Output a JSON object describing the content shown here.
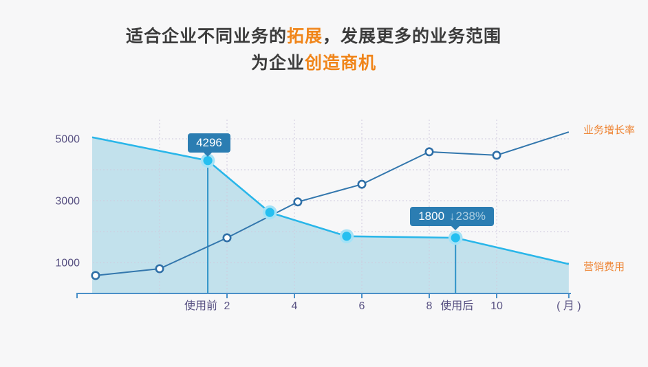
{
  "title": {
    "line1_part1": "适合企业不同业务的",
    "line1_accent": "拓展",
    "line1_part2": "，发展更多的业务范围",
    "line2_part1": "为企业",
    "line2_accent": "创造商机"
  },
  "chart_data": {
    "type": "area",
    "title": "",
    "xlabel": "( 月 )",
    "ylabel": "",
    "ylim": [
      0,
      5500
    ],
    "grid": "dashed",
    "x_axis": {
      "unit_label": "( 月 )",
      "tick_labels": [
        "2",
        "4",
        "6",
        "8",
        "10"
      ],
      "tick_months": [
        2,
        4,
        6,
        8,
        10
      ],
      "gridline_months": [
        0,
        2,
        4,
        6,
        8,
        10
      ],
      "annotations": [
        {
          "label": "使用前",
          "month": 1.43
        },
        {
          "label": "使用后",
          "month": 8.78
        }
      ]
    },
    "y_axis": {
      "tick_values": [
        1000,
        3000,
        5000
      ],
      "gridline_values": [
        1000,
        2000,
        3000,
        4000,
        5000
      ]
    },
    "series": [
      {
        "name": "营销费用",
        "role": "cost",
        "style": "area",
        "points": [
          {
            "m": -2.0,
            "v": 5050
          },
          {
            "m": 1.43,
            "v": 4296,
            "marker": true,
            "dropline": true
          },
          {
            "m": 3.27,
            "v": 2620,
            "marker": true
          },
          {
            "m": 5.55,
            "v": 1850,
            "marker": true
          },
          {
            "m": 8.78,
            "v": 1800,
            "marker": true,
            "dropline": true
          },
          {
            "m": 12.14,
            "v": 950
          }
        ]
      },
      {
        "name": "业务增长率",
        "role": "growth",
        "style": "line",
        "points": [
          {
            "m": -1.9,
            "v": 580,
            "marker": true
          },
          {
            "m": 0.0,
            "v": 800,
            "marker": true
          },
          {
            "m": 2.0,
            "v": 1800,
            "marker": true
          },
          {
            "m": 4.1,
            "v": 2960,
            "marker": true
          },
          {
            "m": 6.0,
            "v": 3530,
            "marker": true
          },
          {
            "m": 8.0,
            "v": 4580,
            "marker": true
          },
          {
            "m": 10.0,
            "v": 4470,
            "marker": true
          },
          {
            "m": 12.14,
            "v": 5220
          }
        ]
      }
    ],
    "tooltips": [
      {
        "value": "4296",
        "anchor_month": 1.43
      },
      {
        "value": "1800",
        "arrow": "↓",
        "change": "238%",
        "anchor_month": 8.78
      }
    ]
  },
  "colors": {
    "background": "#f7f7f8",
    "title_text": "#3b3b3b",
    "title_accent": "#f0851a",
    "legend_accent": "#ee8433",
    "axis_text": "#585182",
    "axis_line": "#4a90c8",
    "gridline": "#cfcade",
    "cost_line": "#29b6e9",
    "cost_fill": "#bddeea",
    "growth_line": "#3377ad",
    "marker_stroke": "#2f6fa7",
    "marker_fill": "#ffffff",
    "dot_ring": "#a5e2f6",
    "dot_core": "#25bff0",
    "dropline": "#2e93c8",
    "tooltip_bg": "#2b7db2",
    "tooltip_text": "#ffffff",
    "tooltip_muted": "#a9cde1"
  }
}
